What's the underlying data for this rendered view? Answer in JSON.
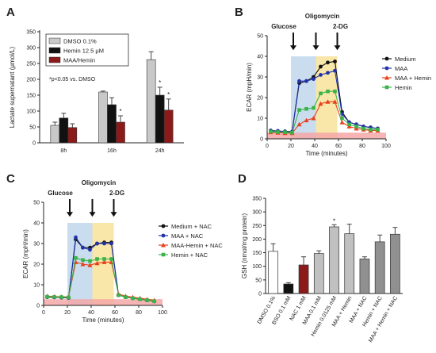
{
  "chart_data": [
    {
      "panel": "A",
      "type": "bar",
      "categories": [
        "8h",
        "16h",
        "24h"
      ],
      "series": [
        {
          "name": "DMSO 0.1%",
          "color": "#c8c8c8",
          "values": [
            55,
            160,
            262
          ],
          "errors": [
            10,
            3,
            25
          ]
        },
        {
          "name": "Hemin 12.5 μM",
          "color": "#111111",
          "values": [
            78,
            120,
            150
          ],
          "errors": [
            15,
            22,
            25
          ]
        },
        {
          "name": "MAA/Hemin",
          "color": "#8b1a1a",
          "values": [
            48,
            65,
            103
          ],
          "errors": [
            12,
            20,
            35
          ]
        }
      ],
      "significance": [
        {
          "category": "16h",
          "series": "MAA/Hemin",
          "mark": "*"
        },
        {
          "category": "24h",
          "series": "Hemin 12.5 μM",
          "mark": "*"
        },
        {
          "category": "24h",
          "series": "MAA/Hemin",
          "mark": "*"
        }
      ],
      "annotation": "*p<0.05 vs. DMSO",
      "ylabel": "Lactate supernatant (μmol/L)",
      "ylim": [
        0,
        350
      ],
      "yticks": [
        0,
        50,
        100,
        150,
        200,
        250,
        300,
        350
      ]
    },
    {
      "panel": "B",
      "type": "line",
      "xlabel": "Time (minutes)",
      "ylabel": "ECAR (mpH/min)",
      "xlim": [
        0,
        100
      ],
      "ylim": [
        0,
        50
      ],
      "xticks": [
        0,
        20,
        40,
        60,
        80,
        100
      ],
      "yticks": [
        0,
        10,
        20,
        30,
        40,
        50
      ],
      "x": [
        3,
        9,
        15,
        21,
        27,
        33,
        39,
        45,
        51,
        57,
        63,
        69,
        75,
        81,
        87,
        93
      ],
      "injections": [
        {
          "label": "Glucose",
          "time": 22
        },
        {
          "label": "Oligomycin",
          "time": 41
        },
        {
          "label": "2-DG",
          "time": 59
        }
      ],
      "series": [
        {
          "name": "Medium",
          "color": "#111111",
          "values": [
            4,
            3.8,
            3.6,
            3.5,
            27,
            28,
            30,
            35,
            37,
            37.5,
            13,
            8,
            7,
            6,
            5.5,
            5
          ]
        },
        {
          "name": "MAA",
          "color": "#2233aa",
          "values": [
            4,
            3.8,
            3.6,
            3.5,
            28,
            28,
            29,
            31,
            32,
            33,
            12,
            8,
            7,
            6,
            5.5,
            5
          ]
        },
        {
          "name": "MAA + Hemin",
          "color": "#e8401c",
          "values": [
            3.2,
            3,
            2.8,
            2.8,
            7,
            9,
            10,
            17,
            18,
            18,
            8,
            6,
            5,
            4.5,
            4,
            4
          ]
        },
        {
          "name": "Hemin",
          "color": "#3ab34a",
          "values": [
            3.5,
            3.3,
            3.2,
            3,
            14,
            14.5,
            15,
            22,
            23,
            23,
            10,
            7,
            6,
            5,
            4.5,
            4.5
          ]
        }
      ]
    },
    {
      "panel": "C",
      "type": "line",
      "xlabel": "Time (minutes)",
      "ylabel": "ECAR (mpH/min)",
      "xlim": [
        0,
        100
      ],
      "ylim": [
        0,
        50
      ],
      "xticks": [
        0,
        20,
        40,
        60,
        80,
        100
      ],
      "yticks": [
        0,
        10,
        20,
        30,
        40,
        50
      ],
      "x": [
        3,
        9,
        15,
        21,
        27,
        33,
        39,
        45,
        51,
        57,
        63,
        69,
        75,
        81,
        87,
        93
      ],
      "injections": [
        {
          "label": "Glucose",
          "time": 22
        },
        {
          "label": "Oligomycin",
          "time": 41
        },
        {
          "label": "2-DG",
          "time": 59
        }
      ],
      "series": [
        {
          "name": "Medium + NAC",
          "color": "#111111",
          "values": [
            4,
            3.9,
            3.8,
            3.7,
            32,
            28,
            28,
            30,
            30.5,
            30.5,
            5,
            4,
            3.5,
            3,
            2.5,
            2
          ]
        },
        {
          "name": "MAA + NAC",
          "color": "#2233aa",
          "values": [
            4,
            3.9,
            3.8,
            3.7,
            33,
            28,
            27,
            30,
            30,
            30,
            5,
            4,
            3.5,
            3,
            2.5,
            2
          ]
        },
        {
          "name": "MAA-Hemin + NAC",
          "color": "#e8401c",
          "values": [
            4.5,
            4.3,
            4.2,
            4.1,
            21,
            20,
            19.5,
            20.5,
            21,
            21,
            5.5,
            4.5,
            4,
            3.5,
            3,
            2.5
          ]
        },
        {
          "name": "Hemin + NAC",
          "color": "#3ab34a",
          "values": [
            4.2,
            4.1,
            4,
            3.9,
            23,
            22,
            21.5,
            22.5,
            22.5,
            22.5,
            5,
            4,
            3.5,
            3,
            2.5,
            2
          ]
        }
      ]
    },
    {
      "panel": "D",
      "type": "bar",
      "categories": [
        "DMSO 0.1%",
        "BSO 0.1 mM",
        "NAC 1 mM",
        "MAA 0.1 mM",
        "Hemin 0.0125 mM",
        "MAA + Hemin",
        "MAA + NAC",
        "Hemin + NAC",
        "MAA + Hemin + NAC"
      ],
      "values": [
        155,
        35,
        105,
        147,
        245,
        220,
        127,
        190,
        218
      ],
      "errors": [
        28,
        5,
        30,
        10,
        8,
        35,
        8,
        25,
        25
      ],
      "colors": [
        "#ffffff",
        "#111111",
        "#8b1a1a",
        "#c0c0c0",
        "#c0c0c0",
        "#c0c0c0",
        "#909090",
        "#909090",
        "#909090"
      ],
      "significance": [
        {
          "category": "Hemin 0.0125 mM",
          "mark": "*"
        }
      ],
      "ylabel": "GSH (nmol/mg protein)",
      "ylim": [
        0,
        350
      ],
      "yticks": [
        0,
        50,
        100,
        150,
        200,
        250,
        300,
        350
      ]
    }
  ],
  "panel_labels": [
    "A",
    "B",
    "C",
    "D"
  ]
}
